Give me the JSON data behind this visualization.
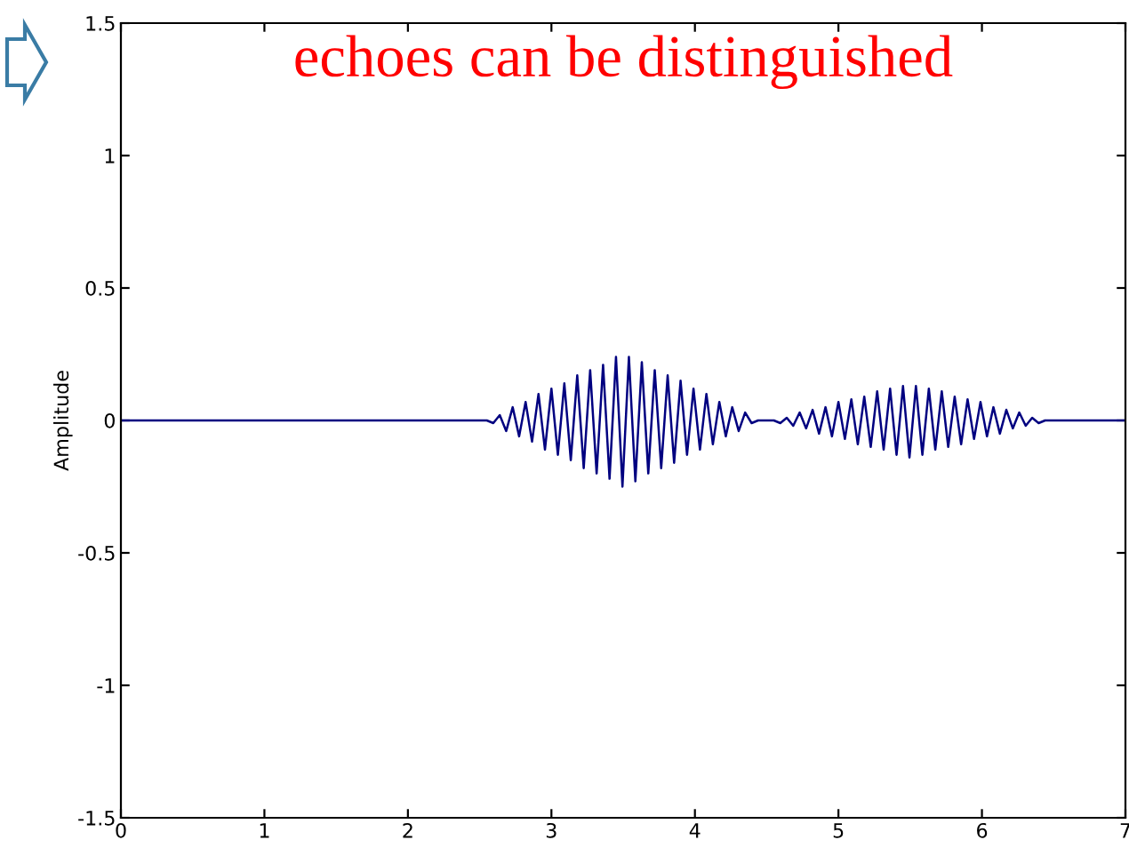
{
  "chart_data": {
    "type": "line",
    "ylabel": "Amplitude",
    "annotations": [
      "echoes can be distinguished"
    ],
    "xlim": [
      0,
      7
    ],
    "ylim": [
      -1.5,
      1.5
    ],
    "xticks": [
      0,
      1,
      2,
      3,
      4,
      5,
      6,
      7
    ],
    "yticks": [
      -1.5,
      -1,
      -0.5,
      0,
      0.5,
      1,
      1.5
    ],
    "grid": false,
    "legend": false,
    "marker": "none",
    "line_style": "solid",
    "series": [
      {
        "color": "#000080",
        "x": [
          0,
          2.55,
          2.595,
          2.64,
          2.685,
          2.73,
          2.775,
          2.82,
          2.865,
          2.91,
          2.955,
          3.0,
          3.045,
          3.09,
          3.135,
          3.18,
          3.225,
          3.27,
          3.315,
          3.36,
          3.405,
          3.45,
          3.495,
          3.54,
          3.585,
          3.63,
          3.675,
          3.72,
          3.765,
          3.81,
          3.855,
          3.9,
          3.945,
          3.99,
          4.035,
          4.08,
          4.125,
          4.17,
          4.215,
          4.26,
          4.305,
          4.35,
          4.395,
          4.44,
          4.55,
          4.595,
          4.64,
          4.685,
          4.73,
          4.775,
          4.82,
          4.865,
          4.91,
          4.955,
          5.0,
          5.045,
          5.09,
          5.135,
          5.18,
          5.225,
          5.27,
          5.315,
          5.36,
          5.405,
          5.45,
          5.495,
          5.54,
          5.585,
          5.63,
          5.675,
          5.72,
          5.765,
          5.81,
          5.855,
          5.9,
          5.945,
          5.99,
          6.035,
          6.08,
          6.125,
          6.17,
          6.215,
          6.26,
          6.305,
          6.35,
          6.395,
          6.44,
          7
        ],
        "values": [
          0,
          0,
          -0.01,
          0.02,
          -0.04,
          0.05,
          -0.06,
          0.07,
          -0.08,
          0.1,
          -0.11,
          0.12,
          -0.13,
          0.14,
          -0.15,
          0.17,
          -0.18,
          0.19,
          -0.2,
          0.21,
          -0.22,
          0.24,
          -0.25,
          0.24,
          -0.23,
          0.22,
          -0.2,
          0.19,
          -0.18,
          0.17,
          -0.16,
          0.15,
          -0.13,
          0.12,
          -0.11,
          0.1,
          -0.09,
          0.07,
          -0.06,
          0.05,
          -0.04,
          0.03,
          -0.01,
          0,
          0,
          -0.01,
          0.01,
          -0.02,
          0.03,
          -0.03,
          0.04,
          -0.05,
          0.05,
          -0.06,
          0.07,
          -0.07,
          0.08,
          -0.09,
          0.09,
          -0.1,
          0.11,
          -0.11,
          0.12,
          -0.13,
          0.13,
          -0.14,
          0.13,
          -0.13,
          0.12,
          -0.11,
          0.11,
          -0.1,
          0.09,
          -0.09,
          0.08,
          -0.07,
          0.07,
          -0.06,
          0.05,
          -0.05,
          0.04,
          -0.03,
          0.03,
          -0.02,
          0.01,
          -0.01,
          0,
          0
        ]
      }
    ]
  }
}
